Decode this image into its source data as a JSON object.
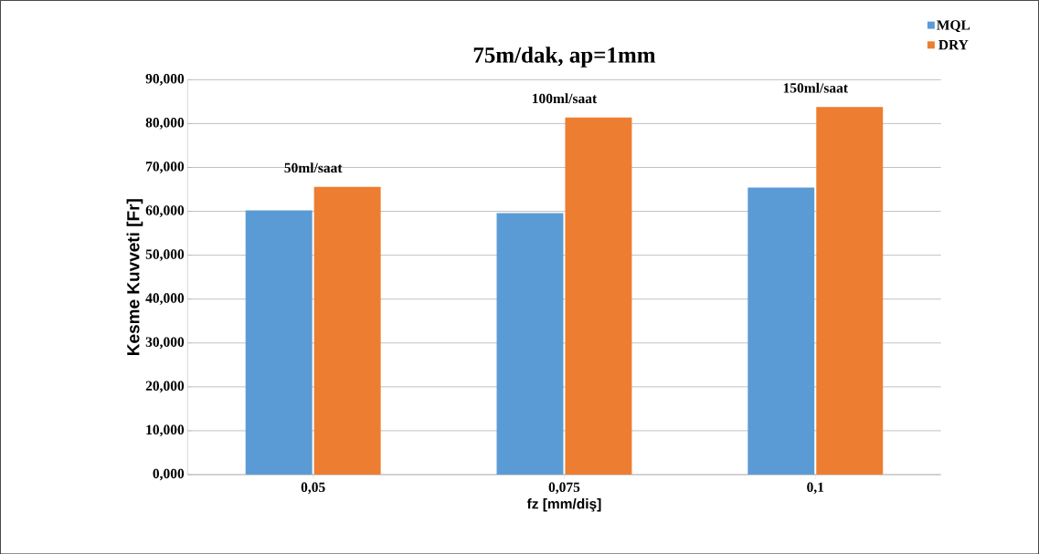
{
  "chart_data": {
    "type": "bar",
    "title": "75m/dak, ap=1mm",
    "xlabel": "fz [mm/diş]",
    "ylabel": "Kesme Kuvveti [Fr]",
    "categories": [
      "0,05",
      "0,075",
      "0,1"
    ],
    "series": [
      {
        "name": "MQL",
        "color": "#5b9bd5",
        "values": [
          60.2,
          59.6,
          65.4
        ]
      },
      {
        "name": "DRY",
        "color": "#ed7d31",
        "values": [
          65.6,
          81.4,
          83.8
        ]
      }
    ],
    "ylim": [
      0,
      90
    ],
    "yticks": [
      {
        "value": 0,
        "label": "0,000"
      },
      {
        "value": 10,
        "label": "10,000"
      },
      {
        "value": 20,
        "label": "20,000"
      },
      {
        "value": 30,
        "label": "30,000"
      },
      {
        "value": 40,
        "label": "40,000"
      },
      {
        "value": 50,
        "label": "50,000"
      },
      {
        "value": 60,
        "label": "60,000"
      },
      {
        "value": 70,
        "label": "70,000"
      },
      {
        "value": 80,
        "label": "80,000"
      },
      {
        "value": 90,
        "label": "90,000"
      }
    ],
    "annotations": [
      "50ml/saat",
      "100ml/saat",
      "150ml/saat"
    ],
    "grid": "y",
    "legend": "top right"
  }
}
